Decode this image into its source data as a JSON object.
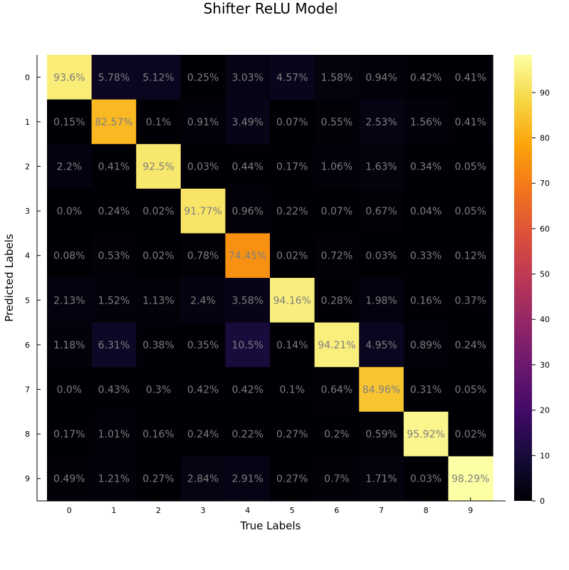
{
  "chart_data": {
    "type": "heatmap",
    "title": "Shifter ReLU Model",
    "xlabel": "True Labels",
    "ylabel": "Predicted Labels",
    "x_categories": [
      "0",
      "1",
      "2",
      "3",
      "4",
      "5",
      "6",
      "7",
      "8",
      "9"
    ],
    "y_categories": [
      "0",
      "1",
      "2",
      "3",
      "4",
      "5",
      "6",
      "7",
      "8",
      "9"
    ],
    "values": [
      [
        93.6,
        5.78,
        5.12,
        0.25,
        3.03,
        4.57,
        1.58,
        0.94,
        0.42,
        0.41
      ],
      [
        0.15,
        82.57,
        0.1,
        0.91,
        3.49,
        0.07,
        0.55,
        2.53,
        1.56,
        0.41
      ],
      [
        2.2,
        0.41,
        92.5,
        0.03,
        0.44,
        0.17,
        1.06,
        1.63,
        0.34,
        0.05
      ],
      [
        0.0,
        0.24,
        0.02,
        91.77,
        0.96,
        0.22,
        0.07,
        0.67,
        0.04,
        0.05
      ],
      [
        0.08,
        0.53,
        0.02,
        0.78,
        74.45,
        0.02,
        0.72,
        0.03,
        0.33,
        0.12
      ],
      [
        2.13,
        1.52,
        1.13,
        2.4,
        3.58,
        94.16,
        0.28,
        1.98,
        0.16,
        0.37
      ],
      [
        1.18,
        6.31,
        0.38,
        0.35,
        10.5,
        0.14,
        94.21,
        4.95,
        0.89,
        0.24
      ],
      [
        0.0,
        0.43,
        0.3,
        0.42,
        0.42,
        0.1,
        0.64,
        84.96,
        0.31,
        0.05
      ],
      [
        0.17,
        1.01,
        0.16,
        0.24,
        0.22,
        0.27,
        0.2,
        0.59,
        95.92,
        0.02
      ],
      [
        0.49,
        1.21,
        0.27,
        2.84,
        2.91,
        0.27,
        0.7,
        1.71,
        0.03,
        98.29
      ]
    ],
    "cell_labels": [
      [
        "93.6%",
        "5.78%",
        "5.12%",
        "0.25%",
        "3.03%",
        "4.57%",
        "1.58%",
        "0.94%",
        "0.42%",
        "0.41%"
      ],
      [
        "0.15%",
        "82.57%",
        "0.1%",
        "0.91%",
        "3.49%",
        "0.07%",
        "0.55%",
        "2.53%",
        "1.56%",
        "0.41%"
      ],
      [
        "2.2%",
        "0.41%",
        "92.5%",
        "0.03%",
        "0.44%",
        "0.17%",
        "1.06%",
        "1.63%",
        "0.34%",
        "0.05%"
      ],
      [
        "0.0%",
        "0.24%",
        "0.02%",
        "91.77%",
        "0.96%",
        "0.22%",
        "0.07%",
        "0.67%",
        "0.04%",
        "0.05%"
      ],
      [
        "0.08%",
        "0.53%",
        "0.02%",
        "0.78%",
        "74.45%",
        "0.02%",
        "0.72%",
        "0.03%",
        "0.33%",
        "0.12%"
      ],
      [
        "2.13%",
        "1.52%",
        "1.13%",
        "2.4%",
        "3.58%",
        "94.16%",
        "0.28%",
        "1.98%",
        "0.16%",
        "0.37%"
      ],
      [
        "1.18%",
        "6.31%",
        "0.38%",
        "0.35%",
        "10.5%",
        "0.14%",
        "94.21%",
        "4.95%",
        "0.89%",
        "0.24%"
      ],
      [
        "0.0%",
        "0.43%",
        "0.3%",
        "0.42%",
        "0.42%",
        "0.1%",
        "0.64%",
        "84.96%",
        "0.31%",
        "0.05%"
      ],
      [
        "0.17%",
        "1.01%",
        "0.16%",
        "0.24%",
        "0.22%",
        "0.27%",
        "0.2%",
        "0.59%",
        "95.92%",
        "0.02%"
      ],
      [
        "0.49%",
        "1.21%",
        "0.27%",
        "2.84%",
        "2.91%",
        "0.27%",
        "0.7%",
        "1.71%",
        "0.03%",
        "98.29%"
      ]
    ],
    "colorbar": {
      "colormap": "inferno",
      "range": [
        0,
        98.29
      ],
      "ticks": [
        "0",
        "10",
        "20",
        "30",
        "40",
        "50",
        "60",
        "70",
        "80",
        "90"
      ]
    },
    "grid": false,
    "legend": "colorbar-right"
  }
}
